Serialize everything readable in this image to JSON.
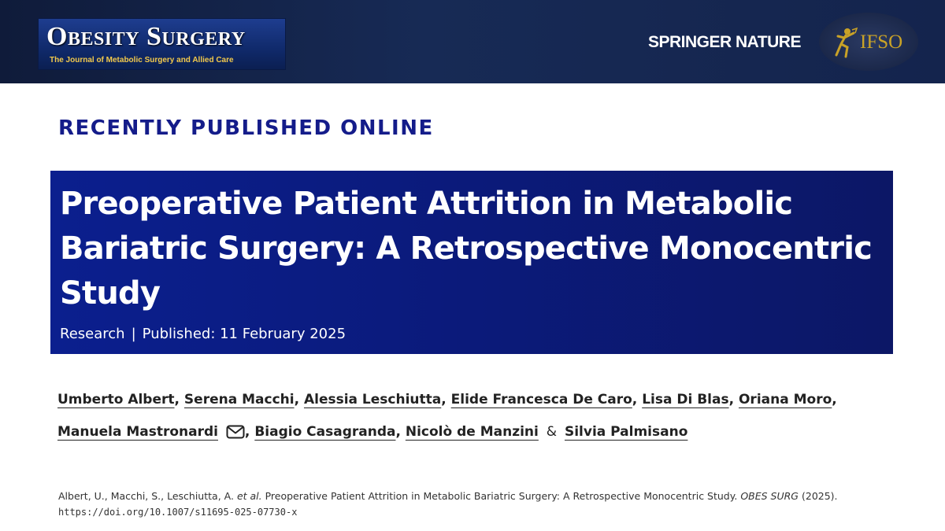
{
  "header": {
    "journal_logo_text": "Obesity Surgery",
    "journal_tagline": "The Journal of Metabolic Surgery and Allied Care",
    "publisher": "SPRINGER NATURE",
    "society_logo_text": "IFSO",
    "background_color": "#14244d"
  },
  "section_label": "RECENTLY PUBLISHED ONLINE",
  "article": {
    "title": "Preoperative Patient Attrition in Metabolic Bariatric Surgery: A Retrospective Monocentric Study",
    "type": "Research",
    "separator": "|",
    "published": "Published: 11 February 2025",
    "title_box_color": "#0b1a7a"
  },
  "authors": [
    "Umberto Albert",
    "Serena Macchi",
    "Alessia Leschiutta",
    "Elide Francesca De Caro",
    "Lisa Di Blas",
    "Oriana Moro",
    "Manuela Mastronardi",
    "Biagio Casagranda",
    "Nicolò de Manzini",
    "Silvia Palmisano"
  ],
  "author_separator": ",",
  "author_conjunction": "&",
  "corresponding_icon": "envelope-icon",
  "citation": {
    "authors": "Albert, U., Macchi, S., Leschiutta, A.",
    "et_al": "et al.",
    "title": "Preoperative Patient Attrition in Metabolic Bariatric Surgery: A Retrospective Monocentric Study.",
    "journal": "OBES SURG",
    "year": "(2025).",
    "doi": "https://doi.org/10.1007/s11695-025-07730-x"
  }
}
